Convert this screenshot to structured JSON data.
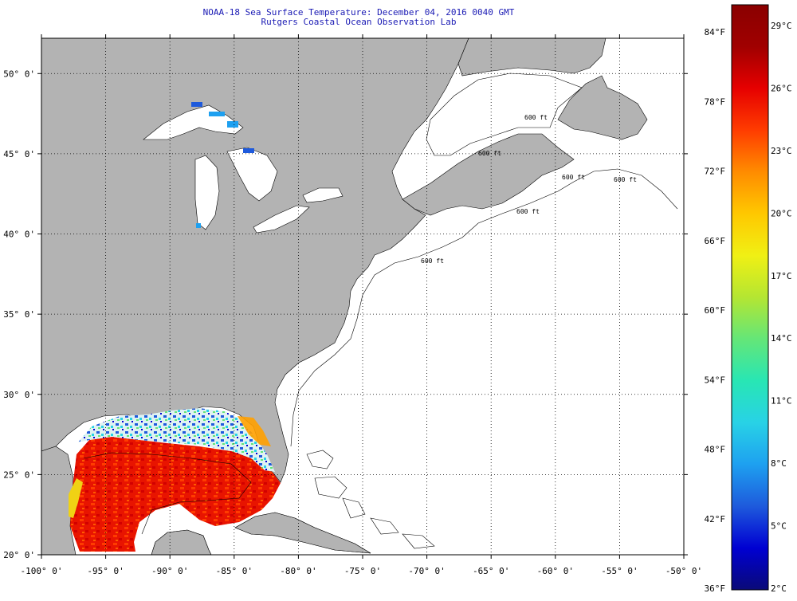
{
  "title_line1": "NOAA-18 Sea Surface Temperature:  December 04, 2016 0040 GMT",
  "title_line2": "Rutgers Coastal Ocean Observation Lab",
  "map": {
    "lon_labels": [
      "-100° 0'",
      "-95° 0'",
      "-90° 0'",
      "-85° 0'",
      "-80° 0'",
      "-75° 0'",
      "-70° 0'",
      "-65° 0'",
      "-60° 0'",
      "-55° 0'",
      "-50° 0'"
    ],
    "lat_labels": [
      "50° 0'",
      "45° 0'",
      "40° 0'",
      "35° 0'",
      "30° 0'",
      "25° 0'",
      "20° 0'"
    ],
    "lon_values": [
      -100,
      -95,
      -90,
      -85,
      -80,
      -75,
      -70,
      -65,
      -60,
      -55,
      -50
    ],
    "lat_values": [
      50,
      45,
      40,
      35,
      30,
      25,
      20
    ],
    "depth_contour_labels": [
      "600 ft",
      "600 ft",
      "600 ft",
      "600 ft",
      "600 ft",
      "600 ft"
    ],
    "colors": {
      "land": "#b3b3b3",
      "ocean": "#ffffff",
      "grid": "#000000"
    }
  },
  "colorbar": {
    "fahrenheit_labels": [
      "84°F",
      "78°F",
      "72°F",
      "66°F",
      "60°F",
      "54°F",
      "48°F",
      "42°F",
      "36°F"
    ],
    "celsius_labels": [
      "29°C",
      "26°C",
      "23°C",
      "20°C",
      "17°C",
      "14°C",
      "11°C",
      "8°C",
      "5°C",
      "2°C"
    ],
    "min_c": 2,
    "max_c": 29,
    "colors": [
      "#0a0a78",
      "#0000d2",
      "#1e5adc",
      "#1ea0f0",
      "#28d2e6",
      "#28e6b4",
      "#64e678",
      "#b4e632",
      "#f0f014",
      "#ffc800",
      "#ff8c00",
      "#ff3c00",
      "#e60000",
      "#a00000",
      "#8a0000"
    ]
  }
}
